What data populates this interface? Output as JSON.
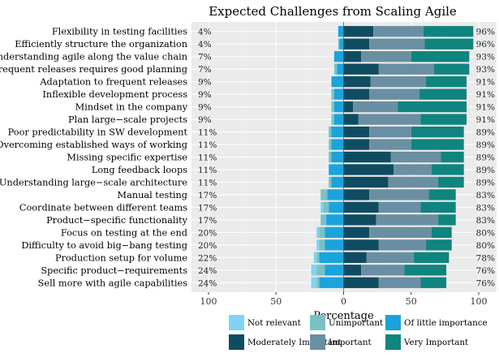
{
  "chart_data": {
    "type": "bar",
    "subtype": "diverging-stacked-likert",
    "title": "Expected Challenges from Scaling Agile",
    "xlabel": "Percentage",
    "ylabel": "",
    "xlim": [
      -100,
      100
    ],
    "xticks": [
      {
        "value": -100,
        "label": "100"
      },
      {
        "value": -50,
        "label": "50"
      },
      {
        "value": 0,
        "label": "0"
      },
      {
        "value": 50,
        "label": "50"
      },
      {
        "value": 100,
        "label": "100"
      }
    ],
    "categories": [
      "Flexibility in testing facilities",
      "Efficiently structure the organization",
      "Understanding agile along the value chain",
      "Frequent releases requires good planning",
      "Adaptation to frequent releases",
      "Inflexible development process",
      "Mindset in the company",
      "Plan large−scale projects",
      "Poor predictability in SW development",
      "Overcoming established ways of working",
      "Missing specific expertise",
      "Long feedback loops",
      "Understanding large−scale architecture",
      "Manual testing",
      "Coordinate between different teams",
      "Product−specific functionality",
      "Focus on testing at the end",
      "Difficulty to avoid big−bang testing",
      "Production setup for volume",
      "Specific product−requirements",
      "Sell more with agile capabilities"
    ],
    "left_percent_labels": [
      "4%",
      "4%",
      "7%",
      "7%",
      "9%",
      "9%",
      "9%",
      "9%",
      "11%",
      "11%",
      "11%",
      "11%",
      "11%",
      "17%",
      "17%",
      "17%",
      "20%",
      "20%",
      "22%",
      "24%",
      "24%"
    ],
    "right_percent_labels": [
      "96%",
      "96%",
      "93%",
      "93%",
      "91%",
      "91%",
      "91%",
      "91%",
      "89%",
      "89%",
      "89%",
      "89%",
      "89%",
      "83%",
      "83%",
      "83%",
      "80%",
      "80%",
      "78%",
      "76%",
      "76%"
    ],
    "series": [
      {
        "name": "Not relevant",
        "color": "#7fd3f5",
        "side": "negative",
        "values": [
          0,
          0,
          0,
          0,
          0,
          0,
          0,
          0,
          0,
          0,
          0,
          0,
          0,
          0,
          2,
          0,
          2,
          2,
          2,
          4,
          4
        ]
      },
      {
        "name": "Unimportant",
        "color": "#7ac1c4",
        "side": "negative",
        "values": [
          0,
          1,
          0,
          2,
          0,
          2,
          2,
          2,
          2,
          2,
          2,
          0,
          2,
          5,
          4,
          4,
          4,
          4,
          2,
          6,
          2
        ]
      },
      {
        "name": "Of little importance",
        "color": "#1aa3dd",
        "side": "negative",
        "values": [
          4,
          3,
          7,
          5,
          9,
          7,
          7,
          7,
          9,
          9,
          9,
          11,
          9,
          12,
          11,
          13,
          14,
          14,
          18,
          14,
          18
        ]
      },
      {
        "name": "Moderately Important",
        "color": "#0f4c62",
        "side": "positive",
        "values": [
          22,
          19,
          13,
          26,
          20,
          19,
          7,
          11,
          19,
          19,
          35,
          37,
          33,
          19,
          26,
          24,
          19,
          26,
          17,
          13,
          26
        ]
      },
      {
        "name": "Important",
        "color": "#6a8fa2",
        "side": "positive",
        "values": [
          37,
          41,
          37,
          41,
          41,
          37,
          33,
          46,
          31,
          31,
          37,
          28,
          37,
          44,
          31,
          46,
          46,
          35,
          35,
          32,
          31
        ]
      },
      {
        "name": "Very Important",
        "color": "#10847e",
        "side": "positive",
        "values": [
          37,
          36,
          43,
          26,
          30,
          35,
          51,
          34,
          39,
          39,
          17,
          24,
          19,
          20,
          26,
          13,
          15,
          19,
          26,
          31,
          19
        ]
      }
    ],
    "legend": {
      "position": "bottom",
      "columns": 3
    }
  }
}
